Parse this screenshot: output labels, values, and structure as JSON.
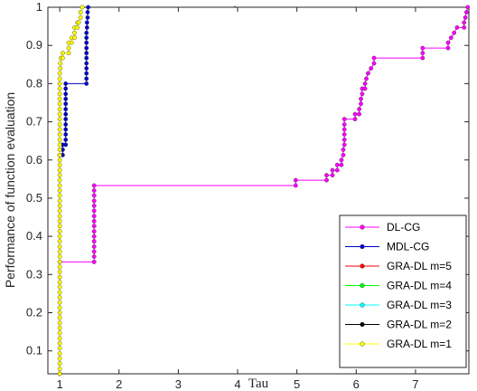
{
  "chart_data": {
    "type": "line",
    "title": ".",
    "xlabel": "Tau",
    "ylabel": "Performance of function evaluation",
    "xlim": [
      0.8,
      7.9
    ],
    "ylim": [
      0.04,
      1.0
    ],
    "xticks": [
      "1",
      "2",
      "3",
      "4",
      "5",
      "6",
      "7"
    ],
    "yticks": [
      "0.1",
      "0.2",
      "0.3",
      "0.4",
      "0.5",
      "0.6",
      "0.7",
      "0.8",
      "0.9",
      "1"
    ],
    "legend_position": "bottom-right",
    "grid": false,
    "series": [
      {
        "name": "DL-CG",
        "color": "#ff00ff",
        "points": [
          [
            1.0,
            0.333
          ],
          [
            1.58,
            0.333
          ],
          [
            1.58,
            0.347
          ],
          [
            1.58,
            0.36
          ],
          [
            1.58,
            0.373
          ],
          [
            1.58,
            0.387
          ],
          [
            1.58,
            0.4
          ],
          [
            1.58,
            0.413
          ],
          [
            1.58,
            0.427
          ],
          [
            1.58,
            0.44
          ],
          [
            1.58,
            0.453
          ],
          [
            1.58,
            0.467
          ],
          [
            1.58,
            0.48
          ],
          [
            1.58,
            0.493
          ],
          [
            1.58,
            0.507
          ],
          [
            1.58,
            0.52
          ],
          [
            1.58,
            0.533
          ],
          [
            4.98,
            0.533
          ],
          [
            4.98,
            0.547
          ],
          [
            5.5,
            0.547
          ],
          [
            5.5,
            0.56
          ],
          [
            5.6,
            0.56
          ],
          [
            5.6,
            0.573
          ],
          [
            5.68,
            0.573
          ],
          [
            5.68,
            0.587
          ],
          [
            5.75,
            0.587
          ],
          [
            5.75,
            0.6
          ],
          [
            5.78,
            0.613
          ],
          [
            5.78,
            0.627
          ],
          [
            5.8,
            0.64
          ],
          [
            5.8,
            0.653
          ],
          [
            5.8,
            0.667
          ],
          [
            5.8,
            0.68
          ],
          [
            5.8,
            0.693
          ],
          [
            5.8,
            0.707
          ],
          [
            5.98,
            0.707
          ],
          [
            5.98,
            0.72
          ],
          [
            6.05,
            0.72
          ],
          [
            6.05,
            0.733
          ],
          [
            6.08,
            0.747
          ],
          [
            6.08,
            0.76
          ],
          [
            6.1,
            0.773
          ],
          [
            6.1,
            0.787
          ],
          [
            6.15,
            0.787
          ],
          [
            6.15,
            0.8
          ],
          [
            6.17,
            0.813
          ],
          [
            6.2,
            0.827
          ],
          [
            6.25,
            0.84
          ],
          [
            6.3,
            0.853
          ],
          [
            6.3,
            0.867
          ],
          [
            7.12,
            0.867
          ],
          [
            7.12,
            0.88
          ],
          [
            7.12,
            0.893
          ],
          [
            7.55,
            0.893
          ],
          [
            7.55,
            0.907
          ],
          [
            7.6,
            0.92
          ],
          [
            7.65,
            0.933
          ],
          [
            7.7,
            0.947
          ],
          [
            7.82,
            0.947
          ],
          [
            7.82,
            0.96
          ],
          [
            7.84,
            0.973
          ],
          [
            7.86,
            0.987
          ],
          [
            7.88,
            1.0
          ]
        ]
      },
      {
        "name": "MDL-CG",
        "color": "#0000cc",
        "points": [
          [
            1.0,
            0.04
          ],
          [
            1.0,
            0.613
          ],
          [
            1.05,
            0.613
          ],
          [
            1.05,
            0.627
          ],
          [
            1.05,
            0.64
          ],
          [
            1.1,
            0.64
          ],
          [
            1.1,
            0.653
          ],
          [
            1.1,
            0.667
          ],
          [
            1.1,
            0.68
          ],
          [
            1.1,
            0.693
          ],
          [
            1.1,
            0.707
          ],
          [
            1.1,
            0.72
          ],
          [
            1.1,
            0.733
          ],
          [
            1.1,
            0.747
          ],
          [
            1.1,
            0.76
          ],
          [
            1.1,
            0.773
          ],
          [
            1.1,
            0.787
          ],
          [
            1.1,
            0.8
          ],
          [
            1.45,
            0.8
          ],
          [
            1.45,
            0.813
          ],
          [
            1.45,
            0.827
          ],
          [
            1.45,
            0.84
          ],
          [
            1.45,
            0.853
          ],
          [
            1.45,
            0.867
          ],
          [
            1.45,
            0.88
          ],
          [
            1.45,
            0.893
          ],
          [
            1.45,
            0.907
          ],
          [
            1.45,
            0.92
          ],
          [
            1.45,
            0.933
          ],
          [
            1.46,
            0.947
          ],
          [
            1.46,
            0.96
          ],
          [
            1.47,
            0.973
          ],
          [
            1.47,
            0.987
          ],
          [
            1.48,
            1.0
          ]
        ]
      },
      {
        "name": "GRA-DL m=5",
        "color": "#ff0000",
        "points": []
      },
      {
        "name": "GRA-DL m=4",
        "color": "#00ff00",
        "points": []
      },
      {
        "name": "GRA-DL m=3",
        "color": "#00ffff",
        "points": []
      },
      {
        "name": "GRA-DL m=2",
        "color": "#000000",
        "points": []
      },
      {
        "name": "GRA-DL m=1",
        "color": "#ffff00",
        "points": [
          [
            1.0,
            0.04
          ],
          [
            1.0,
            0.053
          ],
          [
            1.0,
            0.067
          ],
          [
            1.0,
            0.08
          ],
          [
            1.0,
            0.093
          ],
          [
            1.0,
            0.107
          ],
          [
            1.0,
            0.12
          ],
          [
            1.0,
            0.133
          ],
          [
            1.0,
            0.147
          ],
          [
            1.0,
            0.16
          ],
          [
            1.0,
            0.173
          ],
          [
            1.0,
            0.187
          ],
          [
            1.0,
            0.2
          ],
          [
            1.0,
            0.213
          ],
          [
            1.0,
            0.227
          ],
          [
            1.0,
            0.24
          ],
          [
            1.0,
            0.253
          ],
          [
            1.0,
            0.267
          ],
          [
            1.0,
            0.28
          ],
          [
            1.0,
            0.293
          ],
          [
            1.0,
            0.307
          ],
          [
            1.0,
            0.32
          ],
          [
            1.0,
            0.333
          ],
          [
            1.0,
            0.347
          ],
          [
            1.0,
            0.36
          ],
          [
            1.0,
            0.373
          ],
          [
            1.0,
            0.387
          ],
          [
            1.0,
            0.4
          ],
          [
            1.0,
            0.413
          ],
          [
            1.0,
            0.427
          ],
          [
            1.0,
            0.44
          ],
          [
            1.0,
            0.453
          ],
          [
            1.0,
            0.467
          ],
          [
            1.0,
            0.48
          ],
          [
            1.0,
            0.493
          ],
          [
            1.0,
            0.507
          ],
          [
            1.0,
            0.52
          ],
          [
            1.0,
            0.533
          ],
          [
            1.0,
            0.547
          ],
          [
            1.0,
            0.56
          ],
          [
            1.0,
            0.573
          ],
          [
            1.0,
            0.587
          ],
          [
            1.0,
            0.6
          ],
          [
            1.0,
            0.613
          ],
          [
            1.0,
            0.627
          ],
          [
            1.0,
            0.64
          ],
          [
            1.0,
            0.653
          ],
          [
            1.0,
            0.667
          ],
          [
            1.0,
            0.68
          ],
          [
            1.0,
            0.693
          ],
          [
            1.0,
            0.707
          ],
          [
            1.0,
            0.72
          ],
          [
            1.0,
            0.733
          ],
          [
            1.0,
            0.747
          ],
          [
            1.0,
            0.76
          ],
          [
            1.0,
            0.773
          ],
          [
            1.0,
            0.787
          ],
          [
            1.0,
            0.8
          ],
          [
            1.0,
            0.813
          ],
          [
            1.0,
            0.827
          ],
          [
            1.01,
            0.84
          ],
          [
            1.01,
            0.853
          ],
          [
            1.02,
            0.867
          ],
          [
            1.05,
            0.867
          ],
          [
            1.05,
            0.88
          ],
          [
            1.15,
            0.88
          ],
          [
            1.15,
            0.893
          ],
          [
            1.15,
            0.907
          ],
          [
            1.2,
            0.907
          ],
          [
            1.2,
            0.92
          ],
          [
            1.25,
            0.92
          ],
          [
            1.25,
            0.933
          ],
          [
            1.25,
            0.947
          ],
          [
            1.3,
            0.947
          ],
          [
            1.3,
            0.96
          ],
          [
            1.32,
            0.96
          ],
          [
            1.35,
            0.973
          ],
          [
            1.35,
            0.987
          ],
          [
            1.38,
            1.0
          ]
        ]
      }
    ]
  }
}
